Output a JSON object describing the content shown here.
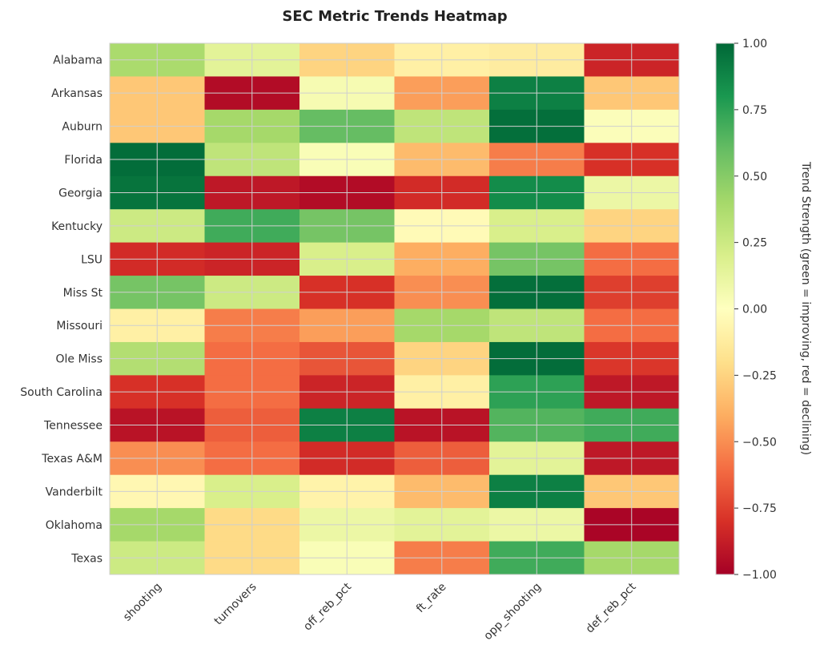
{
  "chart_data": {
    "type": "heatmap",
    "title": "SEC Metric Trends Heatmap",
    "rows": [
      "Alabama",
      "Arkansas",
      "Auburn",
      "Florida",
      "Georgia",
      "Kentucky",
      "LSU",
      "Miss St",
      "Missouri",
      "Ole Miss",
      "South Carolina",
      "Tennessee",
      "Texas A&M",
      "Vanderbilt",
      "Oklahoma",
      "Texas"
    ],
    "columns": [
      "shooting",
      "turnovers",
      "off_reb_pct",
      "ft_rate",
      "opp_shooting",
      "def_reb_pct"
    ],
    "values": [
      [
        0.38,
        0.15,
        -0.25,
        -0.1,
        -0.12,
        -0.85
      ],
      [
        -0.3,
        -0.95,
        0.05,
        -0.45,
        0.9,
        -0.3
      ],
      [
        -0.3,
        0.4,
        0.6,
        0.3,
        0.97,
        0.02
      ],
      [
        0.98,
        0.3,
        0.03,
        -0.35,
        -0.55,
        -0.8
      ],
      [
        0.95,
        -0.9,
        -0.95,
        -0.82,
        0.85,
        0.1
      ],
      [
        0.25,
        0.7,
        0.55,
        -0.03,
        0.2,
        -0.25
      ],
      [
        -0.82,
        -0.85,
        0.2,
        -0.4,
        0.55,
        -0.6
      ],
      [
        0.55,
        0.25,
        -0.8,
        -0.5,
        0.97,
        -0.75
      ],
      [
        -0.1,
        -0.55,
        -0.45,
        0.4,
        0.3,
        -0.6
      ],
      [
        0.35,
        -0.6,
        -0.68,
        -0.25,
        0.98,
        -0.78
      ],
      [
        -0.8,
        -0.6,
        -0.85,
        -0.1,
        0.75,
        -0.9
      ],
      [
        -0.92,
        -0.65,
        0.9,
        -0.92,
        0.65,
        0.7
      ],
      [
        -0.5,
        -0.6,
        -0.82,
        -0.65,
        0.15,
        -0.9
      ],
      [
        -0.05,
        0.2,
        -0.08,
        -0.35,
        0.9,
        -0.3
      ],
      [
        0.4,
        -0.22,
        0.1,
        0.15,
        0.1,
        -0.98
      ],
      [
        0.25,
        -0.22,
        0.03,
        -0.55,
        0.7,
        0.4
      ]
    ],
    "vmin": -1.0,
    "vmax": 1.0,
    "colormap": "RdYlGn",
    "colorbar_ticks": [
      "1.00",
      "0.75",
      "0.50",
      "0.25",
      "0.00",
      "−0.25",
      "−0.50",
      "−0.75",
      "−1.00"
    ],
    "colorbar_tick_values": [
      1.0,
      0.75,
      0.5,
      0.25,
      0.0,
      -0.25,
      -0.5,
      -0.75,
      -1.0
    ],
    "colorbar_label": "Trend Strength (green = improving, red = declining)",
    "grid": true
  }
}
